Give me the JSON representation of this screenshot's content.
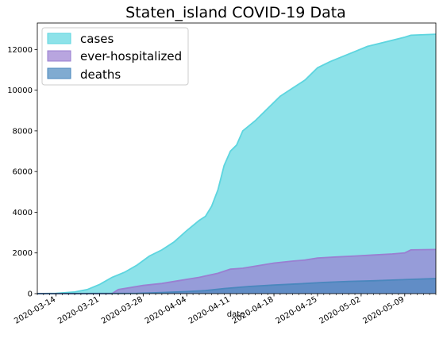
{
  "chart_data": {
    "type": "area",
    "title": "Staten_island COVID-19 Data",
    "xlabel": "date",
    "ylabel": "",
    "x_start": "2020-03-11",
    "x_end": "2020-05-14",
    "ylim": [
      0,
      13300
    ],
    "y_ticks": [
      0,
      2000,
      4000,
      6000,
      8000,
      10000,
      12000
    ],
    "x_ticks": [
      "2020-03-14",
      "2020-03-21",
      "2020-03-28",
      "2020-04-04",
      "2020-04-11",
      "2020-04-18",
      "2020-04-25",
      "2020-05-02",
      "2020-05-09"
    ],
    "legend_position": "top-left",
    "stacked": false,
    "series": [
      {
        "name": "cases",
        "color": "#5dd5df",
        "points": [
          [
            "2020-03-11",
            0
          ],
          [
            "2020-03-14",
            10
          ],
          [
            "2020-03-17",
            80
          ],
          [
            "2020-03-19",
            200
          ],
          [
            "2020-03-21",
            450
          ],
          [
            "2020-03-23",
            800
          ],
          [
            "2020-03-25",
            1050
          ],
          [
            "2020-03-27",
            1400
          ],
          [
            "2020-03-29",
            1850
          ],
          [
            "2020-03-31",
            2150
          ],
          [
            "2020-04-02",
            2550
          ],
          [
            "2020-04-04",
            3100
          ],
          [
            "2020-04-06",
            3600
          ],
          [
            "2020-04-07",
            3800
          ],
          [
            "2020-04-08",
            4300
          ],
          [
            "2020-04-09",
            5100
          ],
          [
            "2020-04-10",
            6300
          ],
          [
            "2020-04-11",
            7000
          ],
          [
            "2020-04-12",
            7300
          ],
          [
            "2020-04-13",
            8000
          ],
          [
            "2020-04-15",
            8500
          ],
          [
            "2020-04-17",
            9100
          ],
          [
            "2020-04-19",
            9700
          ],
          [
            "2020-04-21",
            10100
          ],
          [
            "2020-04-23",
            10500
          ],
          [
            "2020-04-25",
            11100
          ],
          [
            "2020-04-27",
            11400
          ],
          [
            "2020-04-29",
            11650
          ],
          [
            "2020-05-01",
            11900
          ],
          [
            "2020-05-03",
            12150
          ],
          [
            "2020-05-05",
            12300
          ],
          [
            "2020-05-07",
            12450
          ],
          [
            "2020-05-09",
            12600
          ],
          [
            "2020-05-10",
            12700
          ],
          [
            "2020-05-14",
            12750
          ]
        ]
      },
      {
        "name": "ever-hospitalized",
        "color": "#9a7fd1",
        "points": [
          [
            "2020-03-11",
            0
          ],
          [
            "2020-03-23",
            0
          ],
          [
            "2020-03-24",
            200
          ],
          [
            "2020-03-26",
            300
          ],
          [
            "2020-03-28",
            400
          ],
          [
            "2020-03-31",
            500
          ],
          [
            "2020-04-03",
            650
          ],
          [
            "2020-04-06",
            800
          ],
          [
            "2020-04-09",
            1000
          ],
          [
            "2020-04-11",
            1200
          ],
          [
            "2020-04-13",
            1250
          ],
          [
            "2020-04-15",
            1350
          ],
          [
            "2020-04-18",
            1500
          ],
          [
            "2020-04-21",
            1600
          ],
          [
            "2020-04-23",
            1650
          ],
          [
            "2020-04-25",
            1750
          ],
          [
            "2020-04-28",
            1800
          ],
          [
            "2020-05-01",
            1850
          ],
          [
            "2020-05-04",
            1900
          ],
          [
            "2020-05-07",
            1950
          ],
          [
            "2020-05-09",
            2000
          ],
          [
            "2020-05-10",
            2150
          ],
          [
            "2020-05-14",
            2170
          ]
        ]
      },
      {
        "name": "deaths",
        "color": "#4a87bd",
        "points": [
          [
            "2020-03-11",
            0
          ],
          [
            "2020-03-27",
            10
          ],
          [
            "2020-03-31",
            50
          ],
          [
            "2020-04-04",
            100
          ],
          [
            "2020-04-07",
            150
          ],
          [
            "2020-04-10",
            250
          ],
          [
            "2020-04-14",
            350
          ],
          [
            "2020-04-18",
            420
          ],
          [
            "2020-04-22",
            480
          ],
          [
            "2020-04-26",
            550
          ],
          [
            "2020-04-30",
            600
          ],
          [
            "2020-05-04",
            630
          ],
          [
            "2020-05-08",
            680
          ],
          [
            "2020-05-12",
            720
          ],
          [
            "2020-05-14",
            740
          ]
        ]
      }
    ]
  }
}
